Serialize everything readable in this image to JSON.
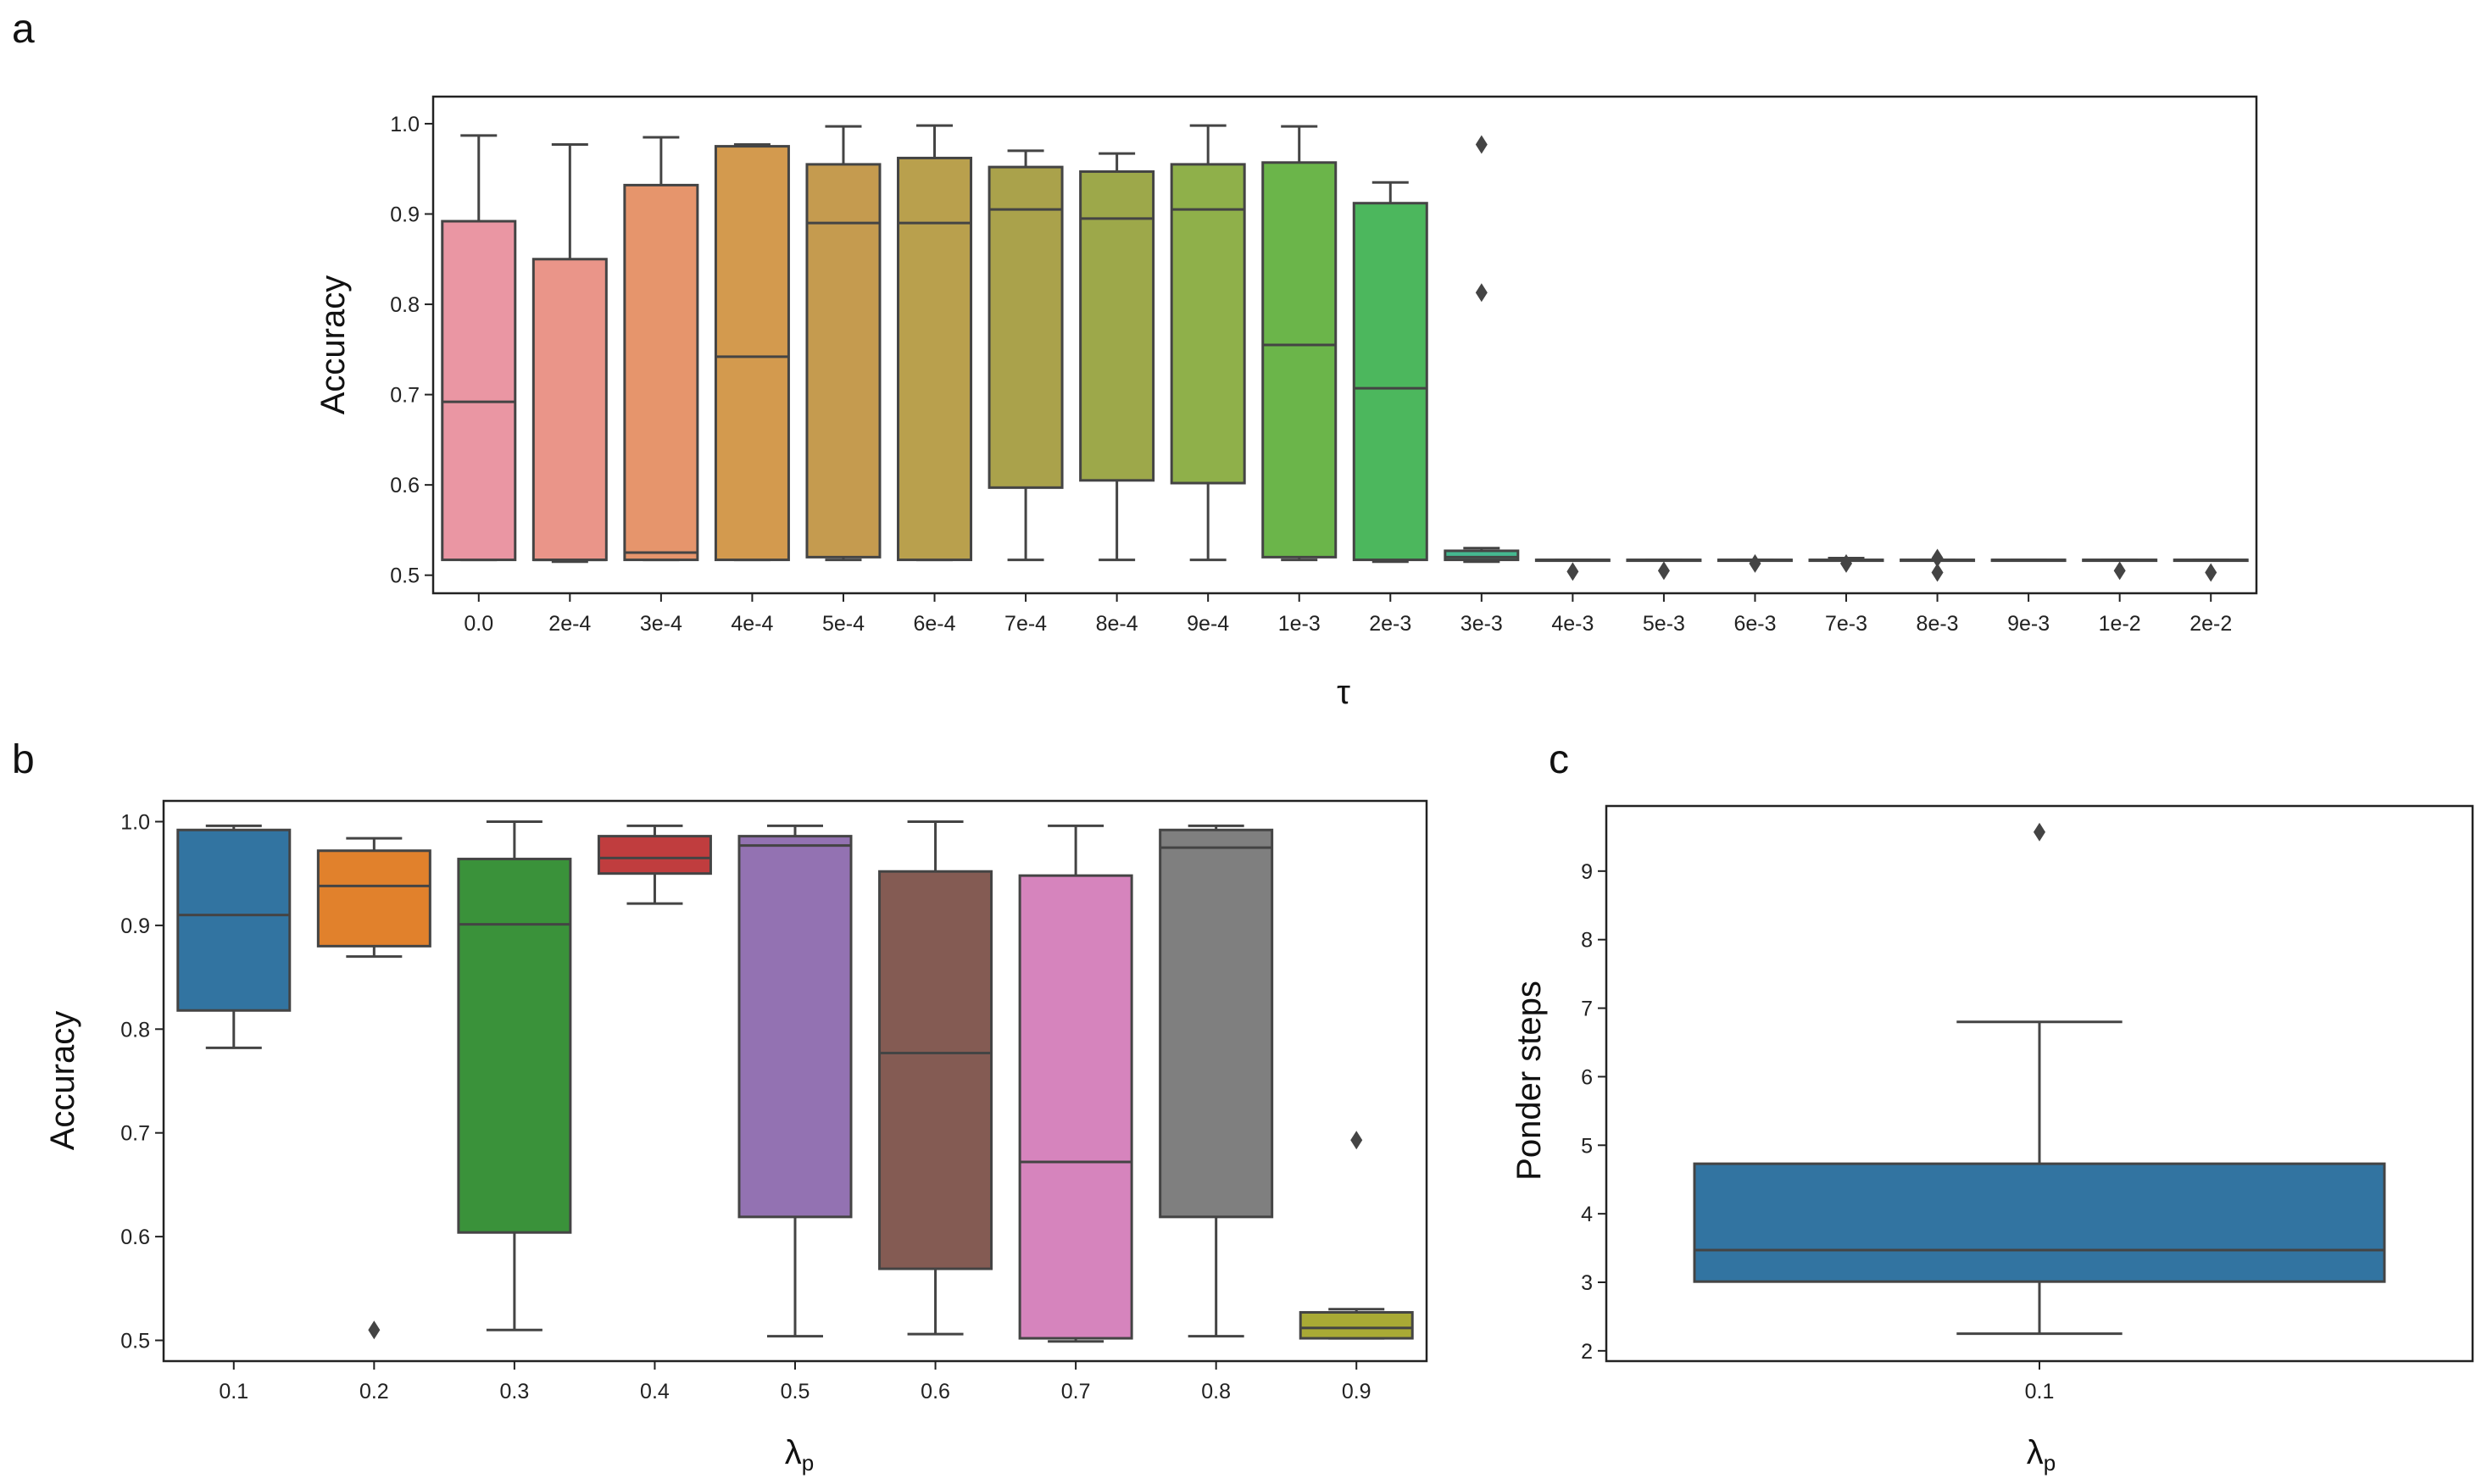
{
  "panels": [
    {
      "letter": "a",
      "xlabel": "τ",
      "ylabel": "Accuracy"
    },
    {
      "letter": "b",
      "xlabel": "λ",
      "xlabel_sub": "p",
      "ylabel": "Accuracy"
    },
    {
      "letter": "c",
      "xlabel": "λ",
      "xlabel_sub": "p",
      "ylabel": "Ponder steps"
    }
  ],
  "chart_data": [
    {
      "type": "box",
      "panel": "a",
      "xlabel": "τ",
      "ylabel": "Accuracy",
      "ylim": [
        0.48,
        1.03
      ],
      "yticks": [
        0.5,
        0.6,
        0.7,
        0.8,
        0.9,
        1.0
      ],
      "ytick_labels": [
        "0.5",
        "0.6",
        "0.7",
        "0.8",
        "0.9",
        "1.0"
      ],
      "grid": false,
      "boxes": [
        {
          "category": "0.0",
          "color": "#ea96a3",
          "whislo": 0.517,
          "q1": 0.517,
          "med": 0.692,
          "q3": 0.892,
          "whishi": 0.987,
          "fliers": []
        },
        {
          "category": "2e-4",
          "color": "#ea9589",
          "whislo": 0.515,
          "q1": 0.517,
          "med": 0.517,
          "q3": 0.85,
          "whishi": 0.977,
          "fliers": []
        },
        {
          "category": "3e-4",
          "color": "#e6956c",
          "whislo": 0.517,
          "q1": 0.517,
          "med": 0.525,
          "q3": 0.932,
          "whishi": 0.985,
          "fliers": []
        },
        {
          "category": "4e-4",
          "color": "#d39a4e",
          "whislo": 0.517,
          "q1": 0.517,
          "med": 0.742,
          "q3": 0.975,
          "whishi": 0.977,
          "fliers": []
        },
        {
          "category": "5e-4",
          "color": "#c59b4f",
          "whislo": 0.517,
          "q1": 0.52,
          "med": 0.89,
          "q3": 0.955,
          "whishi": 0.997,
          "fliers": []
        },
        {
          "category": "6e-4",
          "color": "#b9a04d",
          "whislo": 0.517,
          "q1": 0.517,
          "med": 0.89,
          "q3": 0.962,
          "whishi": 0.998,
          "fliers": []
        },
        {
          "category": "7e-4",
          "color": "#aaa24b",
          "whislo": 0.517,
          "q1": 0.597,
          "med": 0.905,
          "q3": 0.952,
          "whishi": 0.97,
          "fliers": []
        },
        {
          "category": "8e-4",
          "color": "#9da84a",
          "whislo": 0.517,
          "q1": 0.605,
          "med": 0.895,
          "q3": 0.947,
          "whishi": 0.967,
          "fliers": []
        },
        {
          "category": "9e-4",
          "color": "#8fb04a",
          "whislo": 0.517,
          "q1": 0.602,
          "med": 0.905,
          "q3": 0.955,
          "whishi": 0.998,
          "fliers": []
        },
        {
          "category": "1e-3",
          "color": "#6bb54a",
          "whislo": 0.517,
          "q1": 0.52,
          "med": 0.755,
          "q3": 0.957,
          "whishi": 0.997,
          "fliers": []
        },
        {
          "category": "2e-3",
          "color": "#4cb75d",
          "whislo": 0.515,
          "q1": 0.517,
          "med": 0.707,
          "q3": 0.912,
          "whishi": 0.935,
          "fliers": []
        },
        {
          "category": "3e-3",
          "color": "#45b890",
          "whislo": 0.515,
          "q1": 0.517,
          "med": 0.52,
          "q3": 0.527,
          "whishi": 0.53,
          "fliers": [
            0.977,
            0.813
          ]
        },
        {
          "category": "4e-3",
          "color": "#47b7a8",
          "whislo": 0.517,
          "q1": 0.517,
          "med": 0.517,
          "q3": 0.517,
          "whishi": 0.517,
          "fliers": [
            0.504
          ]
        },
        {
          "category": "5e-3",
          "color": "#48b6b9",
          "whislo": 0.517,
          "q1": 0.517,
          "med": 0.517,
          "q3": 0.517,
          "whishi": 0.517,
          "fliers": [
            0.505
          ]
        },
        {
          "category": "6e-3",
          "color": "#4ab3c8",
          "whislo": 0.517,
          "q1": 0.517,
          "med": 0.517,
          "q3": 0.517,
          "whishi": 0.517,
          "fliers": [
            0.513
          ]
        },
        {
          "category": "7e-3",
          "color": "#4eb0d8",
          "whislo": 0.517,
          "q1": 0.517,
          "med": 0.517,
          "q3": 0.517,
          "whishi": 0.519,
          "fliers": [
            0.513
          ]
        },
        {
          "category": "8e-3",
          "color": "#5aa8e3",
          "whislo": 0.517,
          "q1": 0.517,
          "med": 0.517,
          "q3": 0.517,
          "whishi": 0.517,
          "fliers": [
            0.519,
            0.503
          ]
        },
        {
          "category": "9e-3",
          "color": "#7aa0ea",
          "whislo": 0.517,
          "q1": 0.517,
          "med": 0.517,
          "q3": 0.517,
          "whishi": 0.517,
          "fliers": []
        },
        {
          "category": "1e-2",
          "color": "#9d97ea",
          "whislo": 0.517,
          "q1": 0.517,
          "med": 0.517,
          "q3": 0.517,
          "whishi": 0.517,
          "fliers": [
            0.505
          ]
        },
        {
          "category": "2e-2",
          "color": "#c48fe4",
          "whislo": 0.517,
          "q1": 0.517,
          "med": 0.517,
          "q3": 0.517,
          "whishi": 0.517,
          "fliers": [
            0.503
          ]
        }
      ]
    },
    {
      "type": "box",
      "panel": "b",
      "xlabel": "λp",
      "ylabel": "Accuracy",
      "ylim": [
        0.48,
        1.02
      ],
      "yticks": [
        0.5,
        0.6,
        0.7,
        0.8,
        0.9,
        1.0
      ],
      "ytick_labels": [
        "0.5",
        "0.6",
        "0.7",
        "0.8",
        "0.9",
        "1.0"
      ],
      "grid": false,
      "boxes": [
        {
          "category": "0.1",
          "color": "#3274a1",
          "whislo": 0.782,
          "q1": 0.818,
          "med": 0.91,
          "q3": 0.992,
          "whishi": 0.996,
          "fliers": []
        },
        {
          "category": "0.2",
          "color": "#e1812c",
          "whislo": 0.87,
          "q1": 0.88,
          "med": 0.938,
          "q3": 0.972,
          "whishi": 0.984,
          "fliers": [
            0.51
          ]
        },
        {
          "category": "0.3",
          "color": "#3a923a",
          "whislo": 0.51,
          "q1": 0.604,
          "med": 0.901,
          "q3": 0.964,
          "whishi": 1.0,
          "fliers": []
        },
        {
          "category": "0.4",
          "color": "#c03d3e",
          "whislo": 0.921,
          "q1": 0.95,
          "med": 0.965,
          "q3": 0.986,
          "whishi": 0.996,
          "fliers": []
        },
        {
          "category": "0.5",
          "color": "#9372b2",
          "whislo": 0.504,
          "q1": 0.619,
          "med": 0.977,
          "q3": 0.986,
          "whishi": 0.996,
          "fliers": []
        },
        {
          "category": "0.6",
          "color": "#845b53",
          "whislo": 0.506,
          "q1": 0.569,
          "med": 0.777,
          "q3": 0.952,
          "whishi": 1.0,
          "fliers": []
        },
        {
          "category": "0.7",
          "color": "#d684bd",
          "whislo": 0.499,
          "q1": 0.502,
          "med": 0.672,
          "q3": 0.948,
          "whishi": 0.996,
          "fliers": []
        },
        {
          "category": "0.8",
          "color": "#7f7f7f",
          "whislo": 0.504,
          "q1": 0.619,
          "med": 0.975,
          "q3": 0.992,
          "whishi": 0.996,
          "fliers": []
        },
        {
          "category": "0.9",
          "color": "#a9aa35",
          "whislo": 0.502,
          "q1": 0.502,
          "med": 0.512,
          "q3": 0.527,
          "whishi": 0.53,
          "fliers": [
            0.693
          ]
        }
      ]
    },
    {
      "type": "box",
      "panel": "c",
      "xlabel": "λp",
      "ylabel": "Ponder steps",
      "ylim": [
        1.85,
        9.95
      ],
      "yticks": [
        2,
        3,
        4,
        5,
        6,
        7,
        8,
        9
      ],
      "ytick_labels": [
        "2",
        "3",
        "4",
        "5",
        "6",
        "7",
        "8",
        "9"
      ],
      "grid": false,
      "boxes": [
        {
          "category": "0.1",
          "color": "#3274a1",
          "whislo": 2.25,
          "q1": 3.01,
          "med": 3.47,
          "q3": 4.73,
          "whishi": 6.8,
          "fliers": [
            9.57
          ]
        }
      ]
    }
  ]
}
